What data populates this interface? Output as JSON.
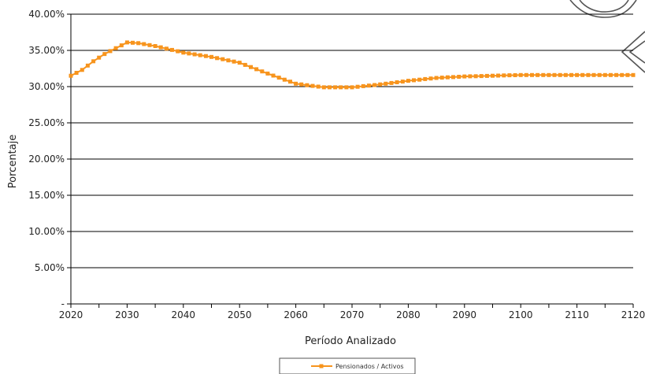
{
  "chart_data": {
    "type": "line",
    "title": "",
    "xlabel": "Período Analizado",
    "ylabel": "Porcentaje",
    "xlim": [
      2020,
      2120
    ],
    "ylim": [
      0,
      40
    ],
    "x_ticks": [
      "2020",
      "2030",
      "2040",
      "2050",
      "2060",
      "2070",
      "2080",
      "2090",
      "2100",
      "2110",
      "2120"
    ],
    "y_ticks": [
      "-",
      "5.00%",
      "10.00%",
      "15.00%",
      "20.00%",
      "25.00%",
      "30.00%",
      "35.00%",
      "40.00%"
    ],
    "grid": "horizontal",
    "legend_position": "bottom",
    "series": [
      {
        "name": "Pensionados / Activos",
        "color": "#F7941D",
        "marker": "square",
        "key_points": [
          [
            2020,
            31.5
          ],
          [
            2022,
            32.3
          ],
          [
            2024,
            33.5
          ],
          [
            2026,
            34.5
          ],
          [
            2028,
            35.3
          ],
          [
            2030,
            36.1
          ],
          [
            2032,
            36.0
          ],
          [
            2035,
            35.6
          ],
          [
            2040,
            34.7
          ],
          [
            2045,
            34.1
          ],
          [
            2050,
            33.3
          ],
          [
            2055,
            31.8
          ],
          [
            2060,
            30.4
          ],
          [
            2065,
            29.9
          ],
          [
            2070,
            29.9
          ],
          [
            2075,
            30.3
          ],
          [
            2080,
            30.8
          ],
          [
            2085,
            31.2
          ],
          [
            2090,
            31.4
          ],
          [
            2100,
            31.6
          ],
          [
            2110,
            31.6
          ],
          [
            2120,
            31.6
          ]
        ]
      }
    ]
  }
}
